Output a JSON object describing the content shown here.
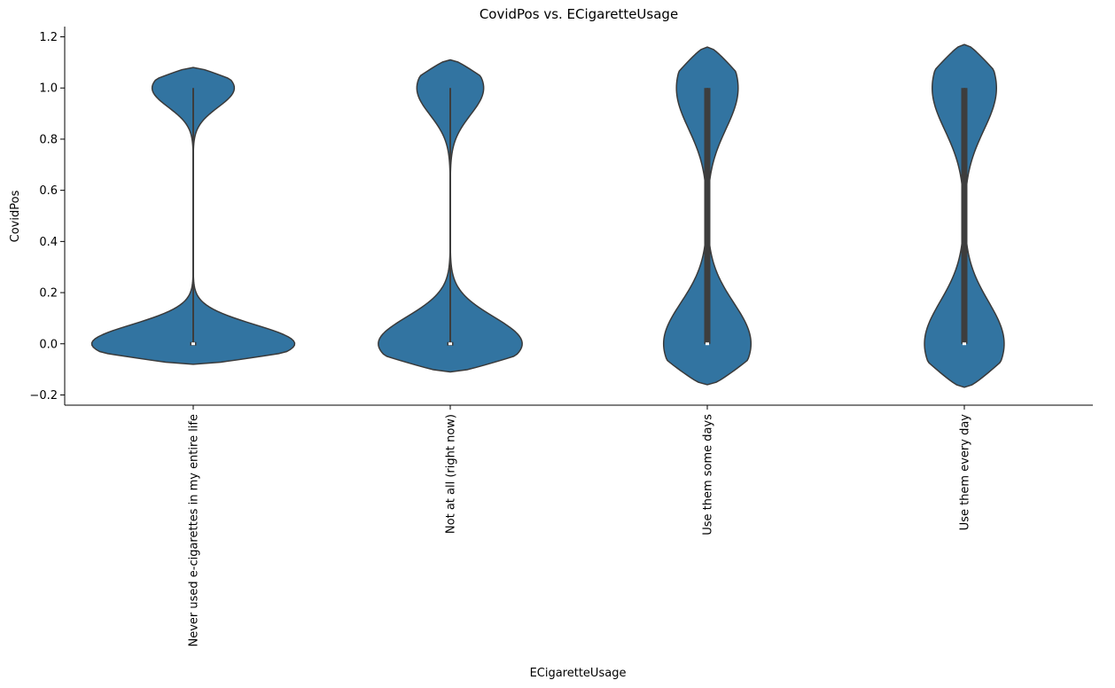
{
  "chart_data": {
    "type": "violin",
    "title": "CovidPos vs. ECigaretteUsage",
    "xlabel": "ECigaretteUsage",
    "ylabel": "CovidPos",
    "ylim": [
      -0.24,
      1.24
    ],
    "yticks": [
      -0.2,
      0.0,
      0.2,
      0.4,
      0.6,
      0.8,
      1.0,
      1.2
    ],
    "ytick_labels": [
      "−0.2",
      "0.0",
      "0.2",
      "0.4",
      "0.6",
      "0.8",
      "1.0",
      "1.2"
    ],
    "categories": [
      "Never used e-cigarettes in my entire life",
      "Not at all (right now)",
      "Use them some days",
      "Use them every day"
    ],
    "violins": [
      {
        "category": "Never used e-cigarettes in my entire life",
        "min": -0.08,
        "max": 1.08,
        "q1": 0.0,
        "median": 0.0,
        "q3": 0.0,
        "lower_half_width": 0.79,
        "upper_half_width": 0.32,
        "waist_value": 0.5,
        "bandwidth": 0.075,
        "whisker": [
          0.0,
          1.0
        ]
      },
      {
        "category": "Not at all (right now)",
        "min": -0.11,
        "max": 1.11,
        "q1": 0.0,
        "median": 0.0,
        "q3": 0.0,
        "lower_half_width": 0.56,
        "upper_half_width": 0.26,
        "waist_value": 0.5,
        "bandwidth": 0.105,
        "whisker": [
          0.0,
          1.0
        ]
      },
      {
        "category": "Use them some days",
        "min": -0.16,
        "max": 1.16,
        "q1": 0.0,
        "median": 0.0,
        "q3": 1.0,
        "lower_half_width": 0.34,
        "upper_half_width": 0.24,
        "waist_value": 0.5,
        "bandwidth": 0.16,
        "whisker": [
          0.0,
          1.0
        ]
      },
      {
        "category": "Use them every day",
        "min": -0.17,
        "max": 1.17,
        "q1": 0.0,
        "median": 0.0,
        "q3": 1.0,
        "lower_half_width": 0.31,
        "upper_half_width": 0.25,
        "waist_value": 0.5,
        "bandwidth": 0.165,
        "whisker": [
          0.0,
          1.0
        ]
      }
    ],
    "grid": false,
    "colors": {
      "violin_fill": "#3274a1",
      "violin_edge": "#3a3a3a",
      "box": "#3d3d3d",
      "median": "#ffffff"
    }
  }
}
